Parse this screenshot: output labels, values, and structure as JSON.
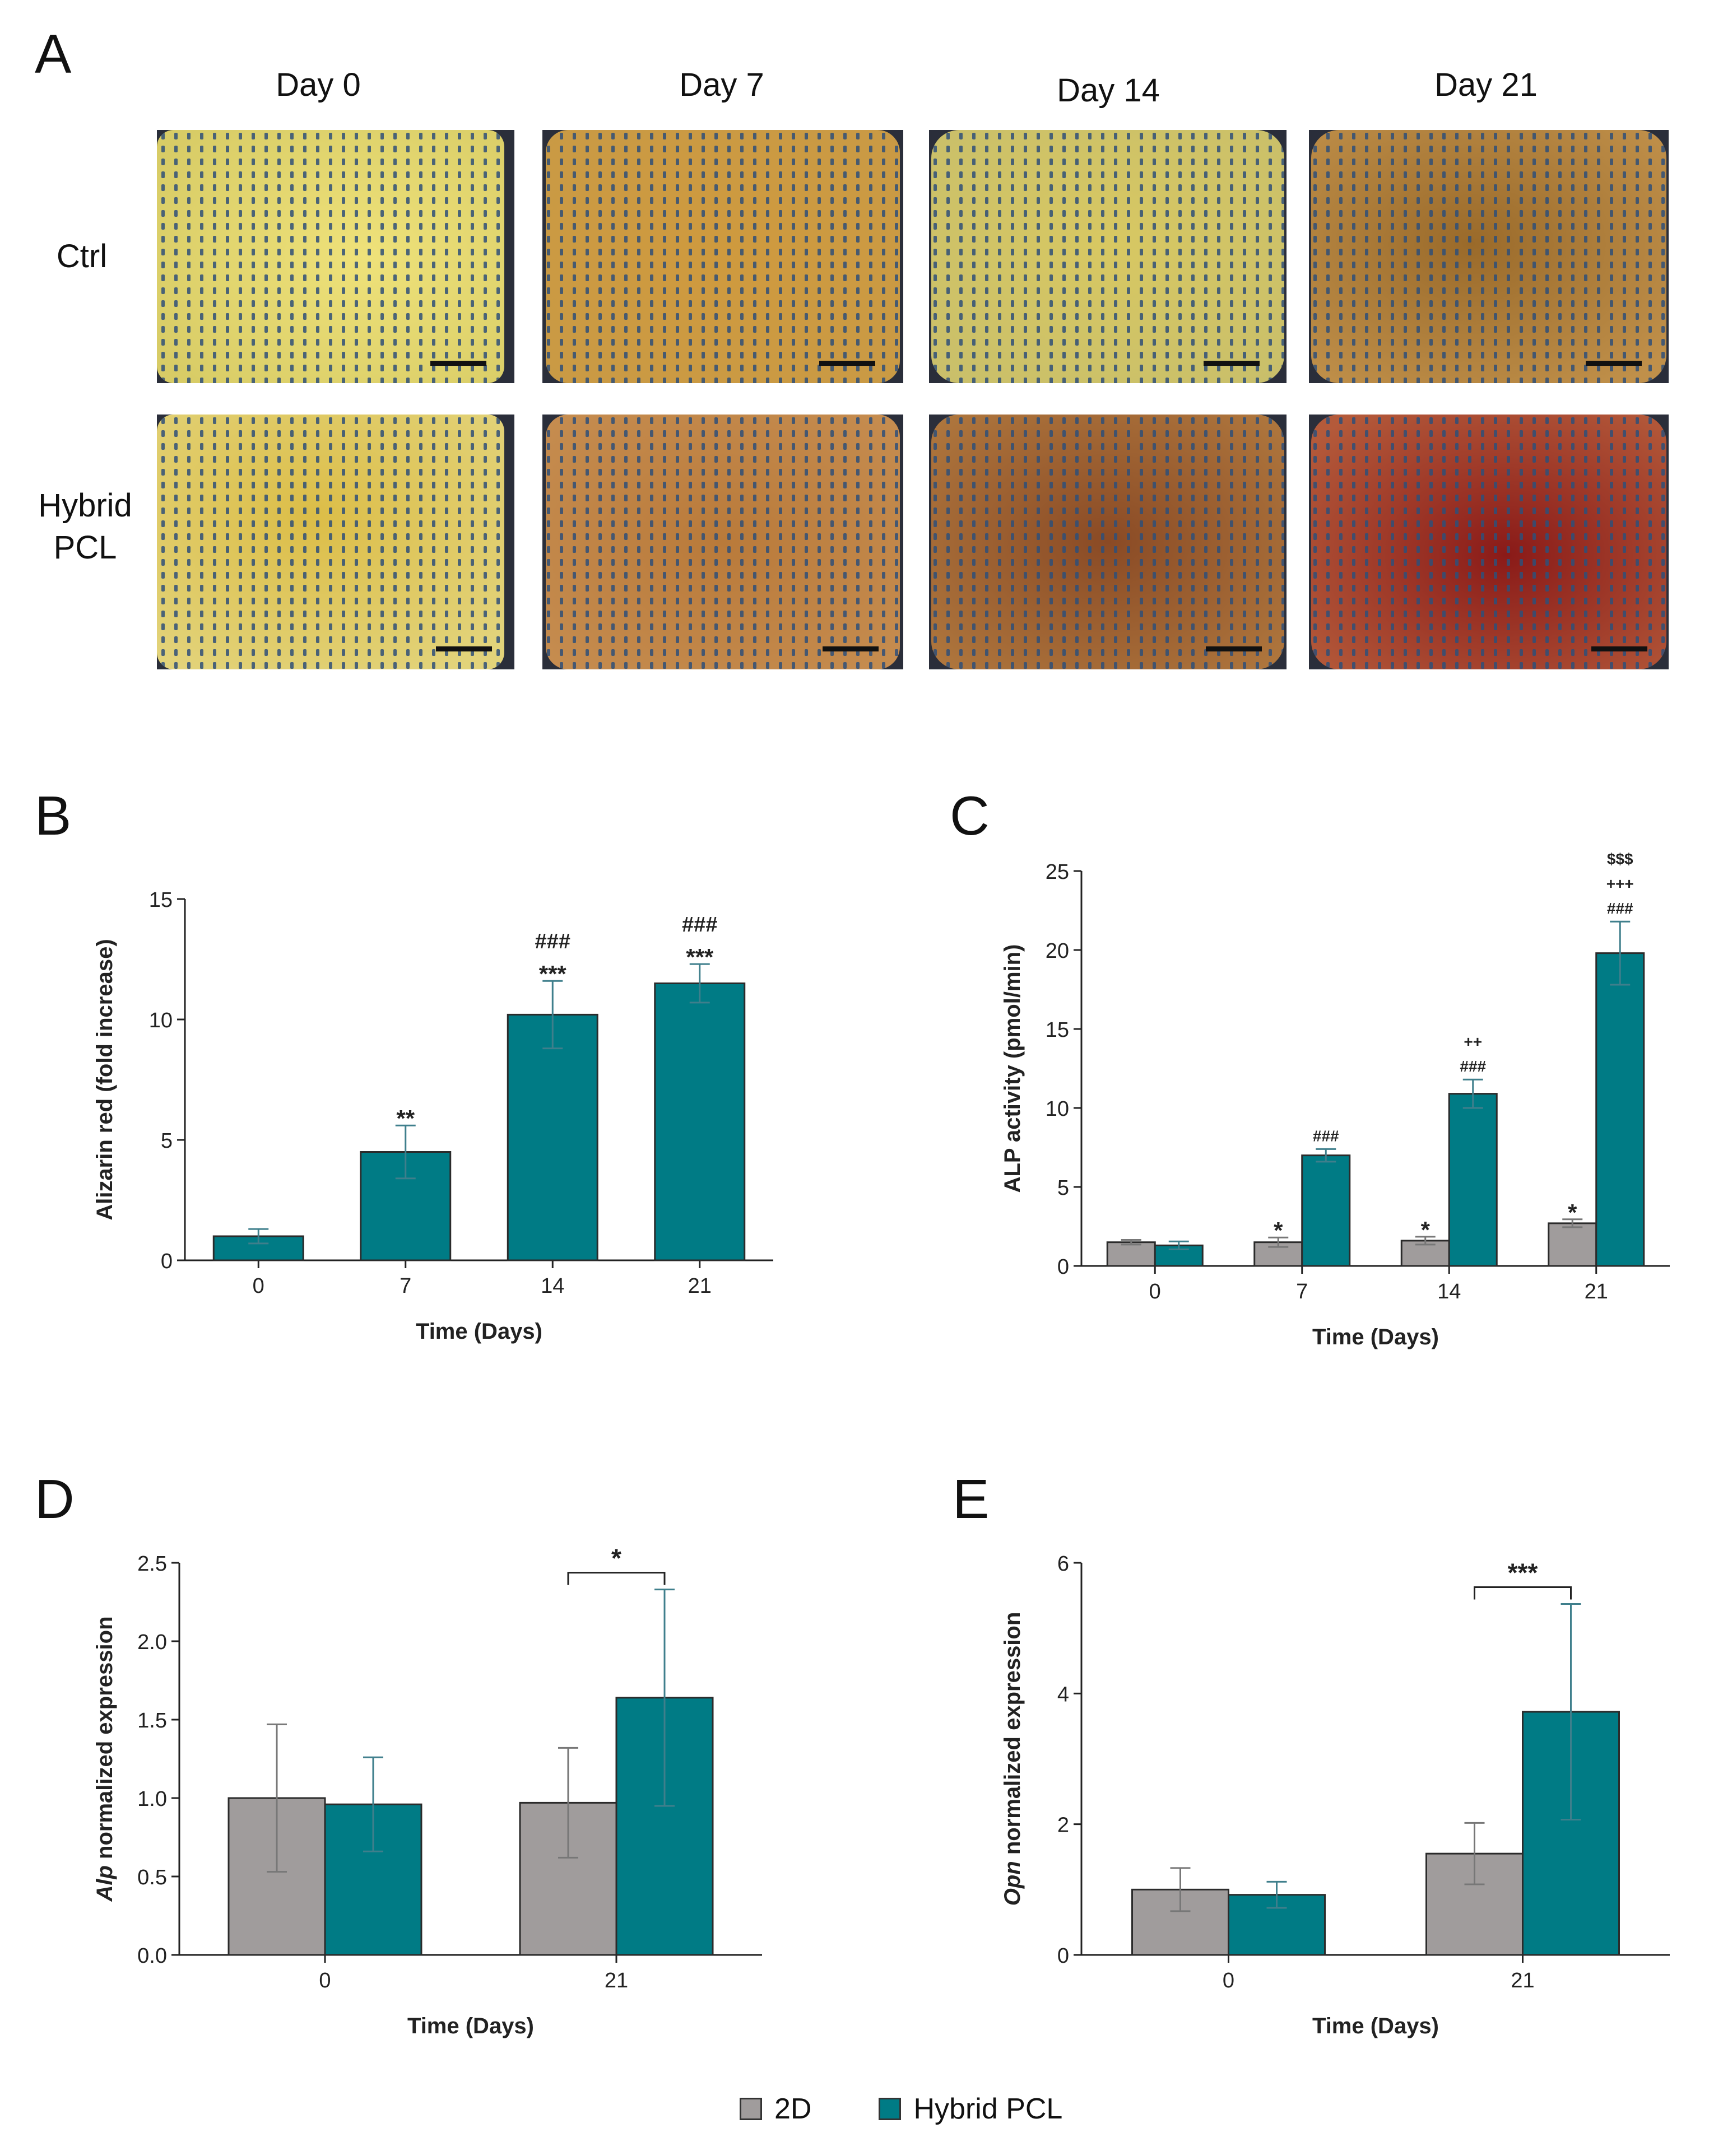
{
  "panel_a": {
    "letter": "A",
    "columns": [
      "Day 0",
      "Day 7",
      "Day 14",
      "Day 21"
    ],
    "rows": [
      "Ctrl",
      "Hybrid PCL"
    ]
  },
  "legend": {
    "items": [
      {
        "label": "2D",
        "color": "#a09c9c"
      },
      {
        "label": "Hybrid PCL",
        "color": "#007b85"
      }
    ]
  },
  "colors": {
    "gray": "#a09c9c",
    "teal": "#007b85",
    "edge": "#2b2b2b"
  },
  "chart_data": [
    {
      "panel": "B",
      "type": "bar",
      "xlabel": "Time (Days)",
      "ylabel": "Alizarin red (fold increase)",
      "ylim": [
        0,
        15
      ],
      "yticks": [
        0,
        5,
        10,
        15
      ],
      "categories": [
        "0",
        "7",
        "14",
        "21"
      ],
      "series": [
        {
          "name": "Hybrid PCL",
          "values": [
            1.0,
            4.5,
            10.2,
            11.5
          ],
          "errors": [
            0.3,
            1.1,
            1.4,
            0.8
          ]
        }
      ],
      "annotations": [
        {
          "category": "7",
          "series": "Hybrid PCL",
          "lines": [
            "**"
          ]
        },
        {
          "category": "14",
          "series": "Hybrid PCL",
          "lines": [
            "###",
            "***"
          ]
        },
        {
          "category": "21",
          "series": "Hybrid PCL",
          "lines": [
            "###",
            "***"
          ]
        }
      ]
    },
    {
      "panel": "C",
      "type": "bar",
      "xlabel": "Time (Days)",
      "ylabel": "ALP activity (pmol/min)",
      "ylim": [
        0,
        25
      ],
      "yticks": [
        0,
        5,
        10,
        15,
        20,
        25
      ],
      "categories": [
        "0",
        "7",
        "14",
        "21"
      ],
      "series": [
        {
          "name": "2D",
          "values": [
            1.5,
            1.5,
            1.6,
            2.7
          ],
          "errors": [
            0.15,
            0.3,
            0.25,
            0.25
          ]
        },
        {
          "name": "Hybrid PCL",
          "values": [
            1.3,
            7.0,
            10.9,
            19.8
          ],
          "errors": [
            0.25,
            0.4,
            0.9,
            2.0
          ]
        }
      ],
      "annotations": [
        {
          "category": "7",
          "series": "2D",
          "lines": [
            "*"
          ]
        },
        {
          "category": "14",
          "series": "2D",
          "lines": [
            "*"
          ]
        },
        {
          "category": "21",
          "series": "2D",
          "lines": [
            "*"
          ]
        },
        {
          "category": "7",
          "series": "Hybrid PCL",
          "lines": [
            "###"
          ]
        },
        {
          "category": "14",
          "series": "Hybrid PCL",
          "lines": [
            "++",
            "###"
          ]
        },
        {
          "category": "21",
          "series": "Hybrid PCL",
          "lines": [
            "$$$",
            "+++",
            "###"
          ]
        }
      ]
    },
    {
      "panel": "D",
      "type": "bar",
      "xlabel": "Time (Days)",
      "ylabel_italic": "Alp",
      "ylabel": " normalized expression",
      "ylim": [
        0,
        2.5
      ],
      "yticks": [
        "0.0",
        "0.5",
        "1.0",
        "1.5",
        "2.0",
        "2.5"
      ],
      "categories": [
        "0",
        "21"
      ],
      "series": [
        {
          "name": "2D",
          "values": [
            1.0,
            0.97
          ],
          "errors": [
            0.47,
            0.35
          ]
        },
        {
          "name": "Hybrid PCL",
          "values": [
            0.96,
            1.64
          ],
          "errors": [
            0.3,
            0.69
          ]
        }
      ],
      "bracket": {
        "category": "21",
        "label": "*"
      }
    },
    {
      "panel": "E",
      "type": "bar",
      "xlabel": "Time (Days)",
      "ylabel_italic": "Opn",
      "ylabel": " normalized expression",
      "ylim": [
        0,
        6
      ],
      "yticks": [
        0,
        2,
        4,
        6
      ],
      "categories": [
        "0",
        "21"
      ],
      "series": [
        {
          "name": "2D",
          "values": [
            1.0,
            1.55
          ],
          "errors": [
            0.33,
            0.47
          ]
        },
        {
          "name": "Hybrid PCL",
          "values": [
            0.92,
            3.72
          ],
          "errors": [
            0.2,
            1.65
          ]
        }
      ],
      "bracket": {
        "category": "21",
        "label": "***"
      }
    }
  ]
}
